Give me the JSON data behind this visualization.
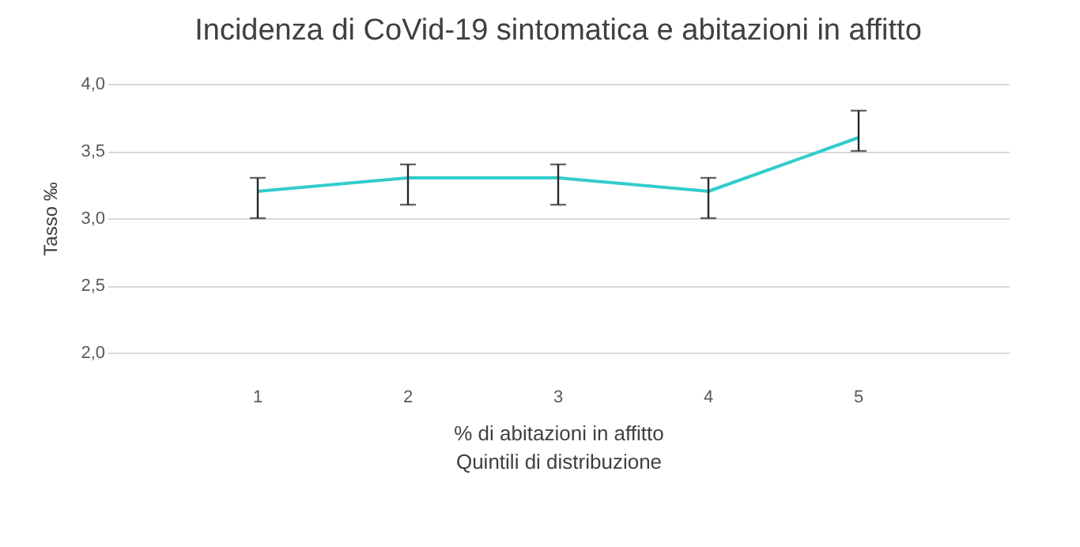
{
  "chart_data": {
    "type": "line",
    "title": "Incidenza di CoVid-19 sintomatica e abitazioni in affitto",
    "xlabel": "% di abitazioni in affitto\nQuintili di distribuzione",
    "ylabel": "Tasso ‰",
    "categories": [
      "1",
      "2",
      "3",
      "4",
      "5"
    ],
    "series": [
      {
        "color": "#33cccc",
        "values": [
          3.2,
          3.3,
          3.3,
          3.2,
          3.6
        ],
        "errors": [
          [
            3.0,
            3.3
          ],
          [
            3.1,
            3.4
          ],
          [
            3.1,
            3.4
          ],
          [
            3.0,
            3.3
          ],
          [
            3.5,
            3.8
          ]
        ]
      }
    ],
    "ylim": [
      2.0,
      4.0
    ],
    "yticks": [
      {
        "value": 2.0,
        "label": "2,0"
      },
      {
        "value": 2.5,
        "label": "2,5"
      },
      {
        "value": 3.0,
        "label": "3,0"
      },
      {
        "value": 3.5,
        "label": "3,5"
      },
      {
        "value": 4.0,
        "label": "4,0"
      }
    ],
    "grid": "y",
    "marker": "none",
    "line_style": "solid"
  }
}
